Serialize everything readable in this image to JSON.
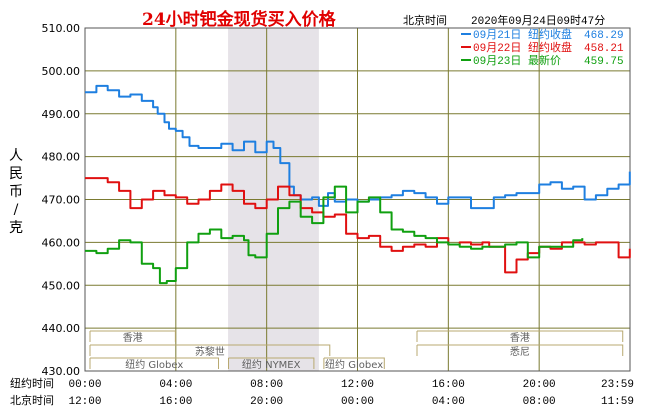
{
  "header": {
    "title": "24小时钯金现货买入价格",
    "timezone_label": "北京时间",
    "timestamp": "2020年09月24日09时47分"
  },
  "colors": {
    "title": "#e00000",
    "grid": "#7a7a30",
    "border": "#555555",
    "shade": "#e6e3e8",
    "market_box": "#b8a870",
    "market_text": "#606060"
  },
  "legend": [
    {
      "date": "09月21日",
      "label": "纽约收盘",
      "value": "468.29",
      "color": "#1e7fe0"
    },
    {
      "date": "09月22日",
      "label": "纽约收盘",
      "value": "458.21",
      "color": "#e01010"
    },
    {
      "date": "09月23日",
      "label": "最新价",
      "value": "459.75",
      "color": "#10a010"
    }
  ],
  "chart_data": {
    "type": "line",
    "ylabel": "人民币/克",
    "ylim": [
      430,
      510
    ],
    "yticks": [
      "510.00",
      "500.00",
      "490.00",
      "480.00",
      "470.00",
      "460.00",
      "450.00",
      "440.00",
      "430.00"
    ],
    "xlim": [
      0,
      24
    ],
    "x_row_ny_label": "纽约时间",
    "x_row_bj_label": "北京时间",
    "x_ticks_ny": [
      "00:00",
      "04:00",
      "08:00",
      "12:00",
      "16:00",
      "20:00",
      "23:59"
    ],
    "x_ticks_bj": [
      "12:00",
      "16:00",
      "20:00",
      "00:00",
      "04:00",
      "08:00",
      "11:59"
    ],
    "shaded_range": [
      6.3,
      10.3
    ],
    "markets": [
      {
        "name": "香港",
        "start": 0.0,
        "end": 4.2,
        "row": 0
      },
      {
        "name": "香港",
        "start": 14.4,
        "end": 23.9,
        "row": 0
      },
      {
        "name": "苏黎世",
        "start": 0.0,
        "end": 11.0,
        "row": 1
      },
      {
        "name": "悉尼",
        "start": 14.4,
        "end": 23.9,
        "row": 1
      },
      {
        "name": "纽约 Globex",
        "start": 0.0,
        "end": 6.1,
        "row": 2
      },
      {
        "name": "纽约 NYMEX",
        "start": 6.1,
        "end": 10.3,
        "row": 2
      },
      {
        "name": "纽约 Globex",
        "start": 10.3,
        "end": 13.4,
        "row": 2
      }
    ],
    "series": [
      {
        "name": "09月21日",
        "color": "#1e7fe0",
        "x": [
          0,
          0.5,
          1,
          1.5,
          2,
          2.5,
          3,
          3.2,
          3.5,
          3.7,
          4,
          4.3,
          4.6,
          5,
          5.5,
          6,
          6.5,
          7,
          7.5,
          8,
          8.3,
          8.6,
          9,
          9.2,
          9.5,
          10,
          10.3,
          10.7,
          11,
          11.5,
          12,
          12.5,
          13,
          13.5,
          14,
          14.5,
          15,
          15.5,
          16,
          16.5,
          17,
          17.5,
          18,
          18.5,
          19,
          19.5,
          20,
          20.5,
          21,
          21.5,
          22,
          22.5,
          23,
          23.5,
          23.99
        ],
        "values": [
          495,
          496.5,
          495.5,
          494,
          494.5,
          493,
          491.5,
          490,
          488,
          486.5,
          486,
          484.5,
          482.5,
          482,
          482,
          483,
          481.5,
          483.5,
          481,
          483.5,
          482,
          478.5,
          473,
          471,
          470,
          470.5,
          468.5,
          471.5,
          469.5,
          470,
          469.5,
          470,
          470.5,
          471,
          472,
          471.5,
          470.5,
          469,
          470.5,
          470.5,
          468,
          468,
          470.5,
          471,
          471.5,
          471.5,
          473.5,
          474,
          472.5,
          473,
          470,
          471,
          472.5,
          473.5,
          476.5
        ]
      },
      {
        "name": "09月22日",
        "color": "#e01010",
        "x": [
          0,
          0.5,
          1,
          1.5,
          2,
          2.5,
          3,
          3.5,
          4,
          4.5,
          5,
          5.5,
          6,
          6.5,
          7,
          7.5,
          8,
          8.5,
          9,
          9.5,
          10,
          10.5,
          11,
          11.5,
          12,
          12.5,
          13,
          13.5,
          14,
          14.5,
          15,
          15.5,
          16,
          16.5,
          17,
          17.5,
          17.8,
          18,
          18.5,
          19,
          19.5,
          20,
          20.5,
          21,
          21.5,
          22,
          22.5,
          23,
          23.5,
          23.99
        ],
        "values": [
          475,
          475,
          474,
          472,
          468,
          470,
          472,
          471,
          470.5,
          469,
          470,
          472,
          473.5,
          472,
          469,
          468,
          470,
          473,
          471,
          468,
          467,
          466,
          466.5,
          462,
          461,
          461.5,
          459,
          458,
          459,
          459.5,
          459,
          461,
          459.5,
          460,
          459.5,
          460,
          459,
          459,
          453,
          456,
          457.5,
          459,
          458.5,
          460,
          460,
          459.5,
          460,
          460,
          456.5,
          458.5
        ]
      },
      {
        "name": "09月23日",
        "color": "#10a010",
        "x": [
          0,
          0.5,
          1,
          1.5,
          2,
          2.5,
          3,
          3.3,
          3.6,
          4,
          4.5,
          5,
          5.5,
          6,
          6.5,
          7,
          7.2,
          7.5,
          8,
          8.5,
          9,
          9.5,
          10,
          10.5,
          11,
          11.5,
          12,
          12.5,
          13,
          13.5,
          14,
          14.5,
          15,
          15.5,
          16,
          16.5,
          17,
          17.5,
          18,
          18.5,
          19,
          19.5,
          20,
          20.5,
          21,
          21.5,
          21.9
        ],
        "values": [
          458,
          457.5,
          458.5,
          460.5,
          460,
          455,
          454,
          450.5,
          451,
          454,
          460,
          462,
          463,
          461,
          461.5,
          460.5,
          457,
          456.5,
          462,
          468,
          469.5,
          466,
          464.5,
          470.5,
          473,
          467,
          469.5,
          470.5,
          467,
          463,
          462.5,
          461.5,
          461,
          460,
          459.5,
          459,
          458.5,
          459,
          459,
          459.5,
          460,
          456.5,
          459,
          459,
          459,
          460.5,
          461
        ]
      }
    ]
  }
}
